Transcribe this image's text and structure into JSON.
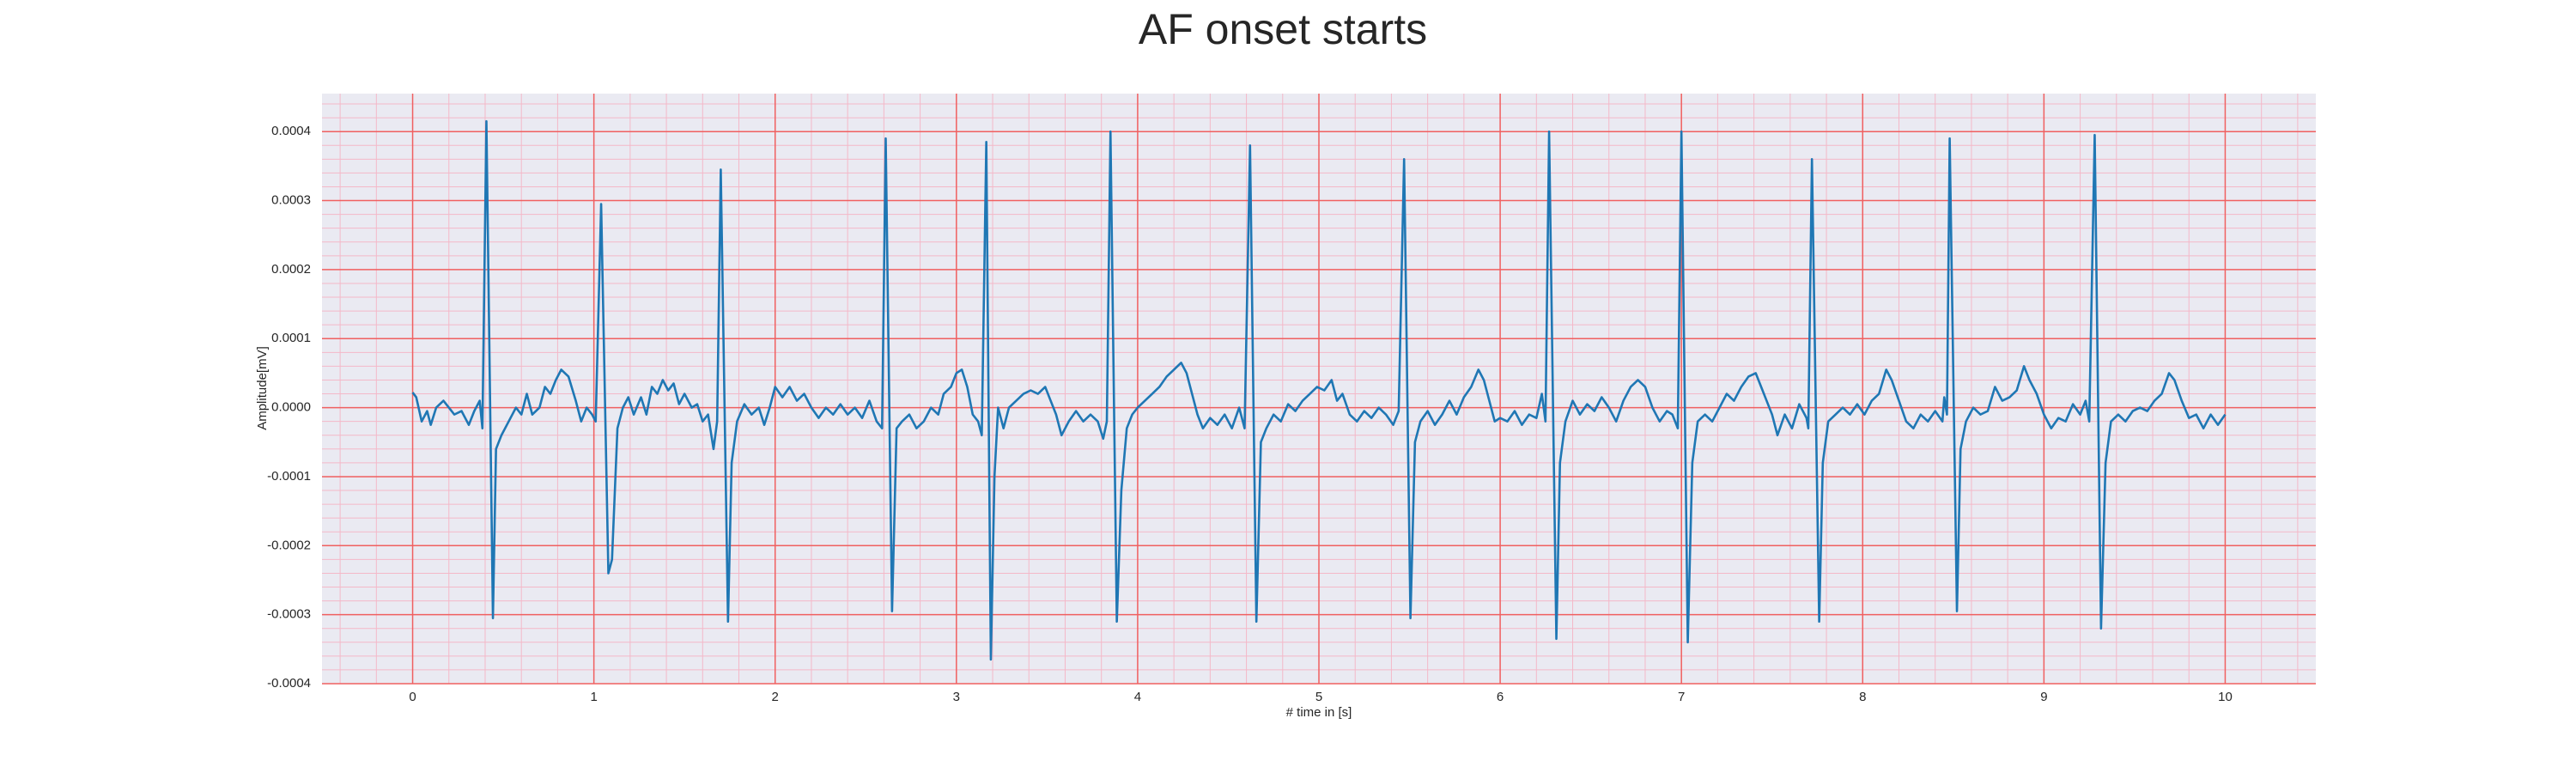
{
  "chart_data": {
    "type": "line",
    "title": "AF onset starts",
    "xlabel": "# time in [s]",
    "ylabel": "Amplitude[mV]",
    "color": "#1f77b4",
    "grid": true,
    "minor_grid": true,
    "xlim": [
      -0.5,
      10.5
    ],
    "ylim": [
      -0.0004,
      0.000455
    ],
    "xticks": [
      0,
      1,
      2,
      3,
      4,
      5,
      6,
      7,
      8,
      9,
      10
    ],
    "yticks": [
      -0.0004,
      -0.0003,
      -0.0002,
      -0.0001,
      {
        "value": 0,
        "label": "0.0000"
      },
      0.0001,
      0.0002,
      0.0003,
      0.0004
    ],
    "x": [
      0,
      0.02,
      0.05,
      0.08,
      0.1,
      0.13,
      0.17,
      0.2,
      0.23,
      0.27,
      0.31,
      0.34,
      0.37,
      0.385,
      0.407,
      0.443,
      0.46,
      0.49,
      0.53,
      0.57,
      0.6,
      0.63,
      0.66,
      0.7,
      0.73,
      0.76,
      0.79,
      0.82,
      0.86,
      0.9,
      0.93,
      0.96,
      0.99,
      1.01,
      1.04,
      1.08,
      1.1,
      1.13,
      1.16,
      1.19,
      1.22,
      1.26,
      1.29,
      1.32,
      1.35,
      1.38,
      1.41,
      1.44,
      1.47,
      1.5,
      1.54,
      1.57,
      1.6,
      1.63,
      1.66,
      1.68,
      1.7,
      1.74,
      1.76,
      1.79,
      1.83,
      1.87,
      1.91,
      1.94,
      1.97,
      2,
      2.04,
      2.08,
      2.12,
      2.16,
      2.2,
      2.24,
      2.28,
      2.32,
      2.36,
      2.4,
      2.44,
      2.48,
      2.52,
      2.56,
      2.59,
      2.61,
      2.645,
      2.67,
      2.7,
      2.74,
      2.78,
      2.82,
      2.86,
      2.9,
      2.93,
      2.97,
      3,
      3.03,
      3.06,
      3.09,
      3.12,
      3.14,
      3.165,
      3.19,
      3.21,
      3.23,
      3.26,
      3.29,
      3.33,
      3.37,
      3.41,
      3.45,
      3.49,
      3.52,
      3.55,
      3.58,
      3.62,
      3.66,
      3.7,
      3.74,
      3.78,
      3.81,
      3.83,
      3.85,
      3.885,
      3.91,
      3.94,
      3.97,
      4,
      4.04,
      4.08,
      4.12,
      4.16,
      4.2,
      4.24,
      4.27,
      4.3,
      4.33,
      4.36,
      4.4,
      4.44,
      4.48,
      4.52,
      4.56,
      4.59,
      4.62,
      4.655,
      4.68,
      4.71,
      4.75,
      4.79,
      4.83,
      4.87,
      4.91,
      4.95,
      4.99,
      5.03,
      5.07,
      5.1,
      5.13,
      5.17,
      5.21,
      5.25,
      5.29,
      5.33,
      5.37,
      5.41,
      5.44,
      5.47,
      5.505,
      5.53,
      5.56,
      5.6,
      5.64,
      5.68,
      5.72,
      5.76,
      5.8,
      5.84,
      5.88,
      5.91,
      5.94,
      5.97,
      6,
      6.04,
      6.08,
      6.12,
      6.16,
      6.2,
      6.23,
      6.25,
      6.27,
      6.31,
      6.33,
      6.36,
      6.4,
      6.44,
      6.48,
      6.52,
      6.56,
      6.6,
      6.64,
      6.68,
      6.72,
      6.76,
      6.8,
      6.84,
      6.88,
      6.92,
      6.95,
      6.98,
      7,
      7.035,
      7.06,
      7.09,
      7.13,
      7.17,
      7.21,
      7.25,
      7.29,
      7.33,
      7.37,
      7.41,
      7.44,
      7.47,
      7.5,
      7.53,
      7.57,
      7.61,
      7.65,
      7.69,
      7.7,
      7.72,
      7.76,
      7.78,
      7.81,
      7.85,
      7.89,
      7.93,
      7.97,
      8.01,
      8.05,
      8.09,
      8.13,
      8.16,
      8.2,
      8.24,
      8.28,
      8.32,
      8.36,
      8.4,
      8.44,
      8.45,
      8.465,
      8.48,
      8.52,
      8.54,
      8.57,
      8.61,
      8.65,
      8.69,
      8.73,
      8.77,
      8.81,
      8.85,
      8.89,
      8.92,
      8.96,
      9,
      9.04,
      9.08,
      9.12,
      9.16,
      9.2,
      9.23,
      9.25,
      9.28,
      9.315,
      9.34,
      9.37,
      9.41,
      9.45,
      9.49,
      9.53,
      9.57,
      9.61,
      9.65,
      9.69,
      9.72,
      9.76,
      9.8,
      9.84,
      9.88,
      9.92,
      9.96,
      10
    ],
    "values": [
      2.2e-05,
      1.5e-05,
      -2e-05,
      -5e-06,
      -2.5e-05,
      0,
      1e-05,
      0,
      -1e-05,
      -5e-06,
      -2.5e-05,
      -5e-06,
      1e-05,
      -3e-05,
      0.000415,
      -0.000305,
      -6e-05,
      -4e-05,
      -2e-05,
      0,
      -1e-05,
      2e-05,
      -1e-05,
      0,
      3e-05,
      2e-05,
      4e-05,
      5.5e-05,
      4.5e-05,
      1e-05,
      -2e-05,
      0,
      -1e-05,
      -2e-05,
      0.000295,
      -0.00024,
      -0.00022,
      -3e-05,
      0,
      1.5e-05,
      -1e-05,
      1.5e-05,
      -1e-05,
      3e-05,
      2e-05,
      4e-05,
      2.5e-05,
      3.5e-05,
      5e-06,
      2e-05,
      0,
      5e-06,
      -2e-05,
      -1e-05,
      -6e-05,
      -2e-05,
      0.000345,
      -0.00031,
      -8e-05,
      -2e-05,
      5e-06,
      -1e-05,
      0,
      -2.5e-05,
      0,
      3e-05,
      1.5e-05,
      3e-05,
      1e-05,
      2e-05,
      0,
      -1.5e-05,
      0,
      -1e-05,
      5e-06,
      -1e-05,
      0,
      -1.5e-05,
      1e-05,
      -2e-05,
      -3e-05,
      0.00039,
      -0.000295,
      -3e-05,
      -2e-05,
      -1e-05,
      -3e-05,
      -2e-05,
      0,
      -1e-05,
      2e-05,
      3e-05,
      5e-05,
      5.5e-05,
      3e-05,
      -1e-05,
      -2e-05,
      -4e-05,
      0.000385,
      -0.000365,
      -0.0001,
      0,
      -3e-05,
      0,
      1e-05,
      2e-05,
      2.5e-05,
      2e-05,
      3e-05,
      1e-05,
      -1e-05,
      -4e-05,
      -2e-05,
      -5e-06,
      -2e-05,
      -1e-05,
      -2e-05,
      -4.5e-05,
      -2e-05,
      0.0004,
      -0.00031,
      -0.00012,
      -3e-05,
      -1e-05,
      0,
      1e-05,
      2e-05,
      3e-05,
      4.5e-05,
      5.5e-05,
      6.5e-05,
      5e-05,
      2e-05,
      -1e-05,
      -3e-05,
      -1.5e-05,
      -2.5e-05,
      -1e-05,
      -3e-05,
      0,
      -3e-05,
      0.00038,
      -0.00031,
      -5e-05,
      -3e-05,
      -1e-05,
      -2e-05,
      5e-06,
      -5e-06,
      1e-05,
      2e-05,
      3e-05,
      2.5e-05,
      4e-05,
      1e-05,
      2e-05,
      -1e-05,
      -2e-05,
      -5e-06,
      -1.5e-05,
      0,
      -1e-05,
      -2.5e-05,
      -5e-06,
      0.00036,
      -0.000305,
      -5e-05,
      -2e-05,
      -5e-06,
      -2.5e-05,
      -1e-05,
      1e-05,
      -1e-05,
      1.5e-05,
      3e-05,
      5.5e-05,
      4e-05,
      1e-05,
      -2e-05,
      -1.5e-05,
      -2e-05,
      -5e-06,
      -2.5e-05,
      -1e-05,
      -1.5e-05,
      2e-05,
      -2e-05,
      0.0004,
      -0.000335,
      -8e-05,
      -2e-05,
      1e-05,
      -1e-05,
      5e-06,
      -5e-06,
      1.5e-05,
      0,
      -2e-05,
      1e-05,
      3e-05,
      4e-05,
      3e-05,
      0,
      -2e-05,
      -5e-06,
      -1e-05,
      -3e-05,
      0.0004,
      -0.00034,
      -8e-05,
      -2e-05,
      -1e-05,
      -2e-05,
      0,
      2e-05,
      1e-05,
      3e-05,
      4.5e-05,
      5e-05,
      3e-05,
      1e-05,
      -1e-05,
      -4e-05,
      -1e-05,
      -3e-05,
      5e-06,
      -1.5e-05,
      -3e-05,
      0.00036,
      -0.00031,
      -8e-05,
      -2e-05,
      -1e-05,
      0,
      -1e-05,
      5e-06,
      -1e-05,
      1e-05,
      2e-05,
      5.5e-05,
      4e-05,
      1e-05,
      -2e-05,
      -3e-05,
      -1e-05,
      -2e-05,
      -5e-06,
      -2e-05,
      1.5e-05,
      -1e-05,
      0.00039,
      -0.000295,
      -6e-05,
      -2e-05,
      0,
      -1e-05,
      -5e-06,
      3e-05,
      1e-05,
      1.5e-05,
      2.5e-05,
      6e-05,
      4e-05,
      2e-05,
      -1e-05,
      -3e-05,
      -1.5e-05,
      -2e-05,
      5e-06,
      -1e-05,
      1e-05,
      -2e-05,
      0.000395,
      -0.00032,
      -8e-05,
      -2e-05,
      -1e-05,
      -2e-05,
      -5e-06,
      0,
      -5e-06,
      1e-05,
      2e-05,
      5e-05,
      4e-05,
      1e-05,
      -1.5e-05,
      -1e-05,
      -3e-05,
      -1e-05,
      -2.5e-05,
      -1e-05
    ]
  }
}
